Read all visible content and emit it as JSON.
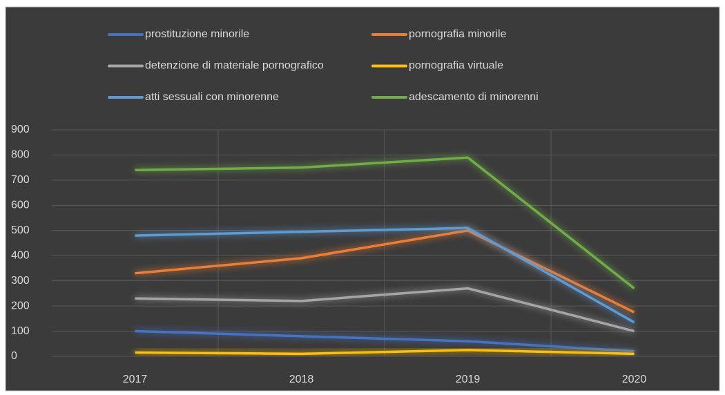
{
  "chart_data": {
    "type": "line",
    "categories": [
      "2017",
      "2018",
      "2019",
      "2020"
    ],
    "series": [
      {
        "name": "prostituzione minorile",
        "color": "#4472c4",
        "values": [
          100,
          80,
          60,
          20
        ]
      },
      {
        "name": "pornografia minorile",
        "color": "#ed7d31",
        "values": [
          330,
          390,
          500,
          175
        ]
      },
      {
        "name": "detenzione di materiale pornografico",
        "color": "#a5a5a5",
        "values": [
          230,
          220,
          270,
          100
        ]
      },
      {
        "name": "pornografia virtuale",
        "color": "#ffc000",
        "values": [
          15,
          10,
          25,
          10
        ]
      },
      {
        "name": "atti sessuali con minorenne",
        "color": "#5b9bd5",
        "values": [
          480,
          495,
          510,
          135
        ]
      },
      {
        "name": "adescamento di minorenni",
        "color": "#70ad47",
        "values": [
          740,
          750,
          790,
          270
        ]
      }
    ],
    "ylim": [
      0,
      900
    ],
    "yticks": [
      0,
      100,
      200,
      300,
      400,
      500,
      600,
      700,
      800,
      900
    ],
    "grid": true,
    "legend": "top"
  }
}
